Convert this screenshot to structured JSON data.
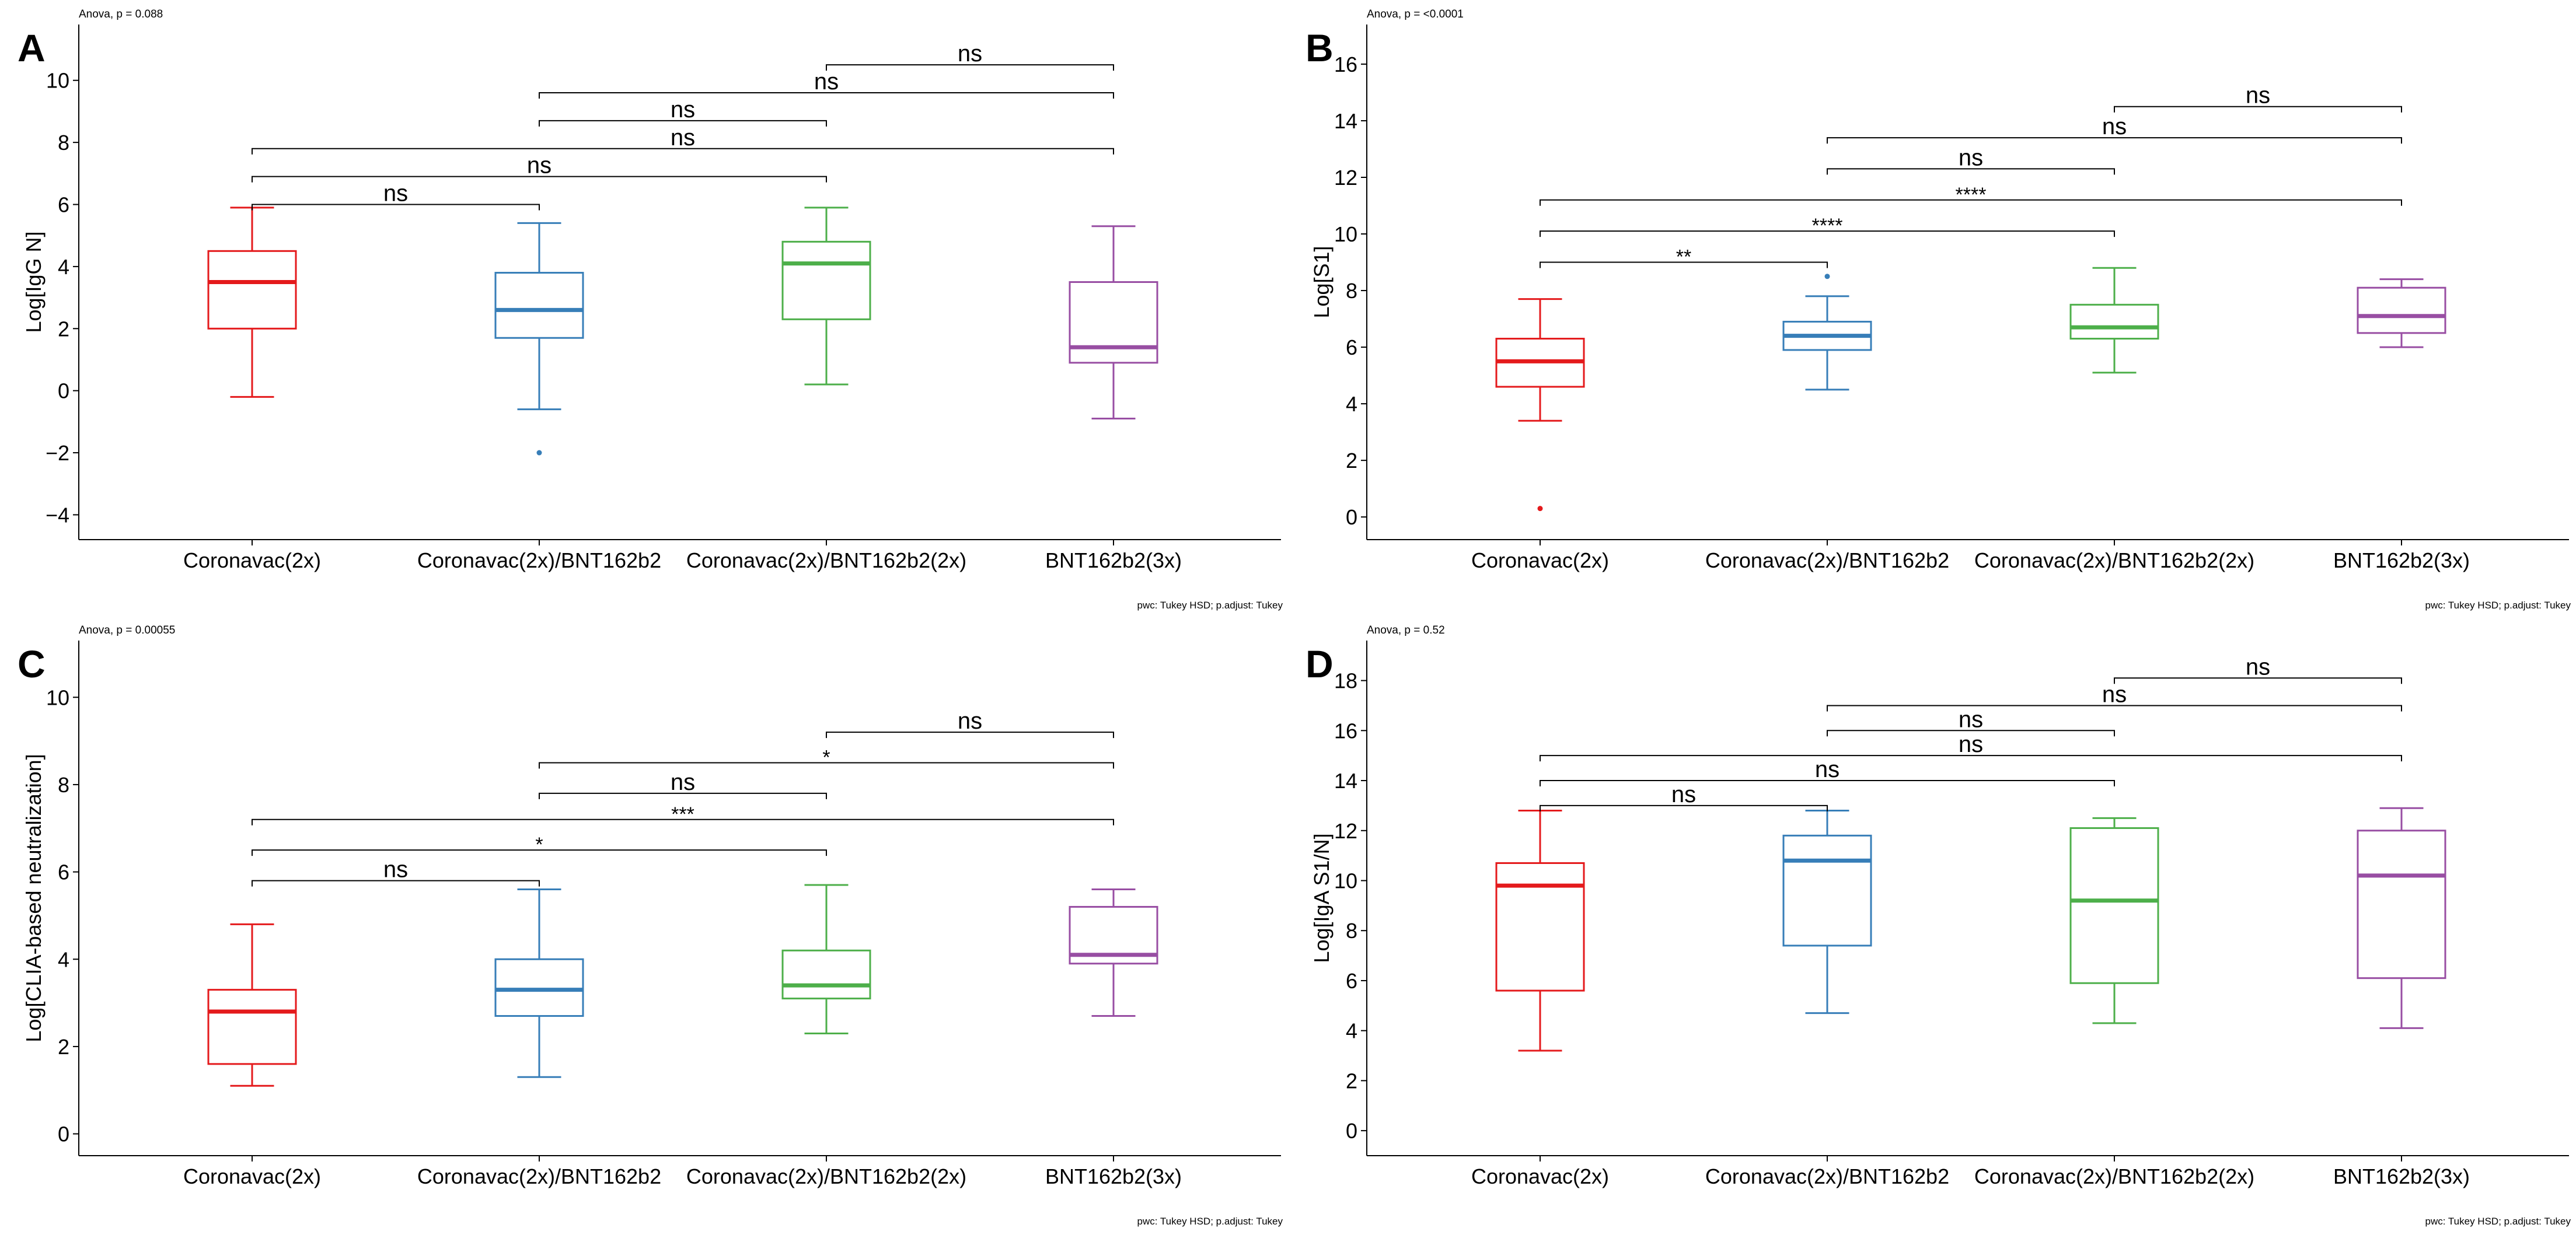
{
  "chart_data": [
    {
      "type": "box",
      "panel_letter": "A",
      "title": "",
      "anova_label": "Anova, p = 0.088",
      "caption": "pwc: Tukey HSD; p.adjust: Tukey",
      "xlabel": "",
      "ylabel": "Log[IgG N]",
      "ylim": [
        -4.8,
        11.8
      ],
      "yticks": [
        -4,
        -2,
        0,
        2,
        4,
        6,
        8,
        10
      ],
      "categories": [
        "Coronavac(2x)",
        "Coronavac(2x)/BNT162b2",
        "Coronavac(2x)/BNT162b2(2x)",
        "BNT162b2(3x)"
      ],
      "colors": [
        "#e41a1c",
        "#377eb8",
        "#4daf4a",
        "#984ea3"
      ],
      "boxes": [
        {
          "min": -0.2,
          "q1": 2.0,
          "median": 3.5,
          "q3": 4.5,
          "max": 5.9,
          "outliers": []
        },
        {
          "min": -0.6,
          "q1": 1.7,
          "median": 2.6,
          "q3": 3.8,
          "max": 5.4,
          "outliers": [
            -2.0
          ]
        },
        {
          "min": 0.2,
          "q1": 2.3,
          "median": 4.1,
          "q3": 4.8,
          "max": 5.9,
          "outliers": []
        },
        {
          "min": -0.9,
          "q1": 0.9,
          "median": 1.4,
          "q3": 3.5,
          "max": 5.3,
          "outliers": []
        }
      ],
      "comparisons": [
        {
          "from": 0,
          "to": 1,
          "y": 6.0,
          "label": "ns"
        },
        {
          "from": 0,
          "to": 2,
          "y": 6.9,
          "label": "ns"
        },
        {
          "from": 0,
          "to": 3,
          "y": 7.8,
          "label": "ns"
        },
        {
          "from": 1,
          "to": 2,
          "y": 8.7,
          "label": "ns"
        },
        {
          "from": 1,
          "to": 3,
          "y": 9.6,
          "label": "ns"
        },
        {
          "from": 2,
          "to": 3,
          "y": 10.5,
          "label": "ns"
        }
      ]
    },
    {
      "type": "box",
      "panel_letter": "B",
      "title": "",
      "anova_label": "Anova, p = <0.0001",
      "caption": "pwc: Tukey HSD; p.adjust: Tukey",
      "xlabel": "",
      "ylabel": "Log[S1]",
      "ylim": [
        -0.8,
        17.4
      ],
      "yticks": [
        0,
        2,
        4,
        6,
        8,
        10,
        12,
        14,
        16
      ],
      "categories": [
        "Coronavac(2x)",
        "Coronavac(2x)/BNT162b2",
        "Coronavac(2x)/BNT162b2(2x)",
        "BNT162b2(3x)"
      ],
      "colors": [
        "#e41a1c",
        "#377eb8",
        "#4daf4a",
        "#984ea3"
      ],
      "boxes": [
        {
          "min": 3.4,
          "q1": 4.6,
          "median": 5.5,
          "q3": 6.3,
          "max": 7.7,
          "outliers": [
            0.3
          ]
        },
        {
          "min": 4.5,
          "q1": 5.9,
          "median": 6.4,
          "q3": 6.9,
          "max": 7.8,
          "outliers": [
            8.5
          ]
        },
        {
          "min": 5.1,
          "q1": 6.3,
          "median": 6.7,
          "q3": 7.5,
          "max": 8.8,
          "outliers": []
        },
        {
          "min": 6.0,
          "q1": 6.5,
          "median": 7.1,
          "q3": 8.1,
          "max": 8.4,
          "outliers": []
        }
      ],
      "comparisons": [
        {
          "from": 0,
          "to": 1,
          "y": 9.0,
          "label": "**"
        },
        {
          "from": 0,
          "to": 2,
          "y": 10.1,
          "label": "****"
        },
        {
          "from": 0,
          "to": 3,
          "y": 11.2,
          "label": "****"
        },
        {
          "from": 1,
          "to": 2,
          "y": 12.3,
          "label": "ns"
        },
        {
          "from": 1,
          "to": 3,
          "y": 13.4,
          "label": "ns"
        },
        {
          "from": 2,
          "to": 3,
          "y": 14.5,
          "label": "ns"
        }
      ]
    },
    {
      "type": "box",
      "panel_letter": "C",
      "title": "",
      "anova_label": "Anova, p = 0.00055",
      "caption": "pwc: Tukey HSD; p.adjust: Tukey",
      "xlabel": "",
      "ylabel": "Log[CLIA-based neutralization]",
      "ylim": [
        -0.5,
        11.3
      ],
      "yticks": [
        0,
        2,
        4,
        6,
        8,
        10
      ],
      "categories": [
        "Coronavac(2x)",
        "Coronavac(2x)/BNT162b2",
        "Coronavac(2x)/BNT162b2(2x)",
        "BNT162b2(3x)"
      ],
      "colors": [
        "#e41a1c",
        "#377eb8",
        "#4daf4a",
        "#984ea3"
      ],
      "boxes": [
        {
          "min": 1.1,
          "q1": 1.6,
          "median": 2.8,
          "q3": 3.3,
          "max": 4.8,
          "outliers": []
        },
        {
          "min": 1.3,
          "q1": 2.7,
          "median": 3.3,
          "q3": 4.0,
          "max": 5.6,
          "outliers": []
        },
        {
          "min": 2.3,
          "q1": 3.1,
          "median": 3.4,
          "q3": 4.2,
          "max": 5.7,
          "outliers": []
        },
        {
          "min": 2.7,
          "q1": 3.9,
          "median": 4.1,
          "q3": 5.2,
          "max": 5.6,
          "outliers": []
        }
      ],
      "comparisons": [
        {
          "from": 0,
          "to": 1,
          "y": 5.8,
          "label": "ns"
        },
        {
          "from": 0,
          "to": 2,
          "y": 6.5,
          "label": "*"
        },
        {
          "from": 0,
          "to": 3,
          "y": 7.2,
          "label": "***"
        },
        {
          "from": 1,
          "to": 2,
          "y": 7.8,
          "label": "ns"
        },
        {
          "from": 1,
          "to": 3,
          "y": 8.5,
          "label": "*"
        },
        {
          "from": 2,
          "to": 3,
          "y": 9.2,
          "label": "ns"
        }
      ]
    },
    {
      "type": "box",
      "panel_letter": "D",
      "title": "",
      "anova_label": "Anova, p = 0.52",
      "caption": "pwc: Tukey HSD; p.adjust: Tukey",
      "xlabel": "",
      "ylabel": "Log[IgA S1/N]",
      "ylim": [
        -1.0,
        19.6
      ],
      "yticks": [
        0,
        2,
        4,
        6,
        8,
        10,
        12,
        14,
        16,
        18
      ],
      "categories": [
        "Coronavac(2x)",
        "Coronavac(2x)/BNT162b2",
        "Coronavac(2x)/BNT162b2(2x)",
        "BNT162b2(3x)"
      ],
      "colors": [
        "#e41a1c",
        "#377eb8",
        "#4daf4a",
        "#984ea3"
      ],
      "boxes": [
        {
          "min": 3.2,
          "q1": 5.6,
          "median": 9.8,
          "q3": 10.7,
          "max": 12.8,
          "outliers": []
        },
        {
          "min": 4.7,
          "q1": 7.4,
          "median": 10.8,
          "q3": 11.8,
          "max": 12.8,
          "outliers": []
        },
        {
          "min": 4.3,
          "q1": 5.9,
          "median": 9.2,
          "q3": 12.1,
          "max": 12.5,
          "outliers": []
        },
        {
          "min": 4.1,
          "q1": 6.1,
          "median": 10.2,
          "q3": 12.0,
          "max": 12.9,
          "outliers": []
        }
      ],
      "comparisons": [
        {
          "from": 0,
          "to": 1,
          "y": 13.0,
          "label": "ns"
        },
        {
          "from": 0,
          "to": 2,
          "y": 14.0,
          "label": "ns"
        },
        {
          "from": 0,
          "to": 3,
          "y": 15.0,
          "label": "ns"
        },
        {
          "from": 1,
          "to": 2,
          "y": 16.0,
          "label": "ns"
        },
        {
          "from": 1,
          "to": 3,
          "y": 17.0,
          "label": "ns"
        },
        {
          "from": 2,
          "to": 3,
          "y": 18.1,
          "label": "ns"
        }
      ]
    }
  ]
}
